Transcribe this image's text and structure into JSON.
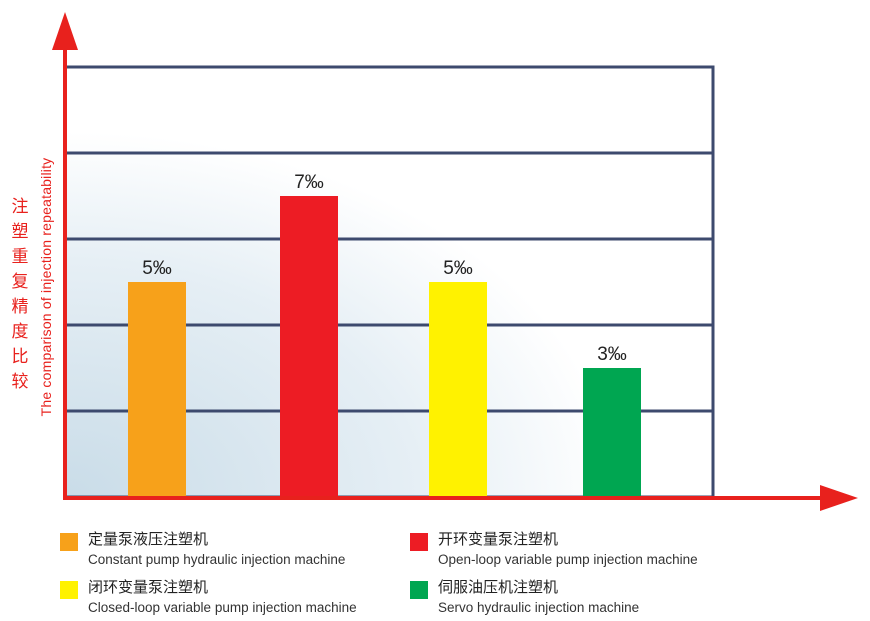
{
  "chart_data": {
    "type": "bar",
    "ylabel_cn": [
      "注",
      "塑",
      "重",
      "复",
      "精",
      "度",
      "比",
      "较"
    ],
    "ylabel_en": "The comparison of injection repeatability",
    "ylim": [
      0,
      10
    ],
    "grid": true,
    "bars": [
      {
        "value": 5,
        "label": "5‰",
        "color": "#f7a11a",
        "name_cn": "定量泵液压注塑机",
        "name_en": "Constant pump hydraulic injection machine"
      },
      {
        "value": 7,
        "label": "7‰",
        "color": "#ed1c24",
        "name_cn": "开环变量泵注塑机",
        "name_en": "Open-loop variable pump injection machine"
      },
      {
        "value": 5,
        "label": "5‰",
        "color": "#fff200",
        "name_cn": "闭环变量泵注塑机",
        "name_en": "Closed-loop variable pump injection machine"
      },
      {
        "value": 3,
        "label": "3‰",
        "color": "#00a651",
        "name_cn": "伺服油压机注塑机",
        "name_en": "Servo hydraulic injection machine"
      }
    ]
  },
  "colors": {
    "axis": "#e8211d",
    "grid": "#3d4a6e"
  }
}
